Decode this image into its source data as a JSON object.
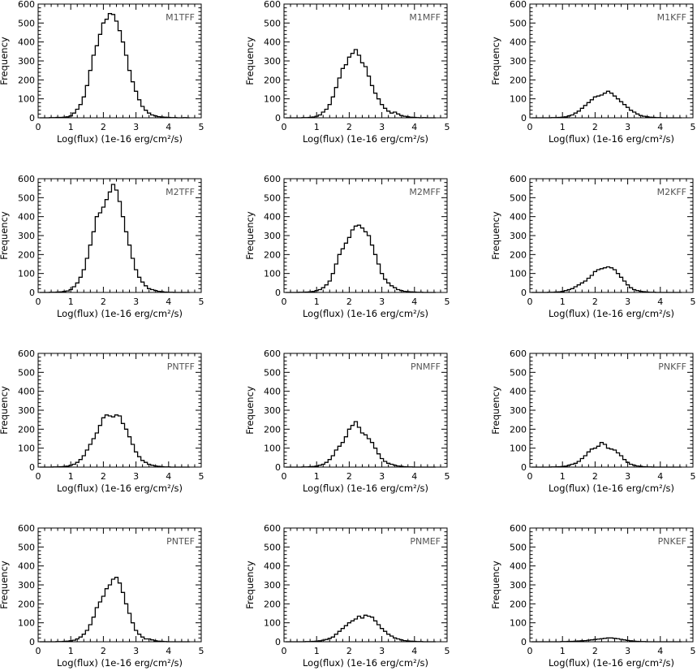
{
  "chart_data": [
    {
      "type": "bar",
      "title": "M1TFF",
      "xlabel": "Log(flux) (1e-16 erg/cm²/s)",
      "ylabel": "Frequency",
      "xlim": [
        0,
        5
      ],
      "ylim": [
        0,
        600
      ],
      "xticks": [
        "0",
        "1",
        "2",
        "3",
        "4",
        "5"
      ],
      "yticks": [
        "0",
        "100",
        "200",
        "300",
        "400",
        "500",
        "600"
      ],
      "x": [
        0.1,
        0.2,
        0.3,
        0.4,
        0.5,
        0.6,
        0.7,
        0.8,
        0.9,
        1.0,
        1.1,
        1.2,
        1.3,
        1.4,
        1.5,
        1.6,
        1.7,
        1.8,
        1.9,
        2.0,
        2.1,
        2.2,
        2.3,
        2.4,
        2.5,
        2.6,
        2.7,
        2.8,
        2.9,
        3.0,
        3.1,
        3.2,
        3.3,
        3.4,
        3.5,
        3.6,
        3.7,
        3.8,
        3.9,
        4.0,
        4.1,
        4.2,
        4.3,
        4.4,
        4.5,
        4.6
      ],
      "values": [
        0,
        0,
        0,
        1,
        1,
        2,
        2,
        3,
        5,
        10,
        25,
        45,
        70,
        110,
        170,
        250,
        330,
        380,
        440,
        500,
        520,
        550,
        545,
        510,
        460,
        400,
        330,
        250,
        190,
        140,
        95,
        60,
        40,
        25,
        15,
        10,
        6,
        4,
        3,
        2,
        1,
        1,
        0,
        0,
        1,
        0
      ]
    },
    {
      "type": "bar",
      "title": "M1MFF",
      "xlabel": "Log(flux) (1e-16 erg/cm²/s)",
      "ylabel": "Frequency",
      "xlim": [
        0,
        5
      ],
      "ylim": [
        0,
        600
      ],
      "xticks": [
        "0",
        "1",
        "2",
        "3",
        "4",
        "5"
      ],
      "yticks": [
        "0",
        "100",
        "200",
        "300",
        "400",
        "500",
        "600"
      ],
      "x": [
        0.1,
        0.2,
        0.3,
        0.4,
        0.5,
        0.6,
        0.7,
        0.8,
        0.9,
        1.0,
        1.1,
        1.2,
        1.3,
        1.4,
        1.5,
        1.6,
        1.7,
        1.8,
        1.9,
        2.0,
        2.1,
        2.2,
        2.3,
        2.4,
        2.5,
        2.6,
        2.7,
        2.8,
        2.9,
        3.0,
        3.1,
        3.2,
        3.3,
        3.4,
        3.5,
        3.6,
        3.7,
        3.8,
        3.9,
        4.0,
        4.1,
        4.2,
        4.3,
        4.4,
        4.5,
        4.6
      ],
      "values": [
        0,
        0,
        0,
        0,
        0,
        1,
        1,
        2,
        4,
        8,
        15,
        30,
        45,
        70,
        110,
        160,
        210,
        260,
        280,
        320,
        340,
        360,
        330,
        290,
        270,
        220,
        170,
        130,
        100,
        70,
        50,
        35,
        25,
        30,
        20,
        12,
        8,
        5,
        3,
        2,
        1,
        0,
        1,
        0,
        0,
        0
      ]
    },
    {
      "type": "bar",
      "title": "M1KFF",
      "xlabel": "Log(flux) (1e-16 erg/cm²/s)",
      "ylabel": "Frequency",
      "xlim": [
        0,
        5
      ],
      "ylim": [
        0,
        600
      ],
      "xticks": [
        "0",
        "1",
        "2",
        "3",
        "4",
        "5"
      ],
      "yticks": [
        "0",
        "100",
        "200",
        "300",
        "400",
        "500",
        "600"
      ],
      "x": [
        0.1,
        0.2,
        0.3,
        0.4,
        0.5,
        0.6,
        0.7,
        0.8,
        0.9,
        1.0,
        1.1,
        1.2,
        1.3,
        1.4,
        1.5,
        1.6,
        1.7,
        1.8,
        1.9,
        2.0,
        2.1,
        2.2,
        2.3,
        2.4,
        2.5,
        2.6,
        2.7,
        2.8,
        2.9,
        3.0,
        3.1,
        3.2,
        3.3,
        3.4,
        3.5,
        3.6,
        3.7,
        3.8,
        3.9,
        4.0,
        4.1,
        4.2,
        4.3,
        4.4,
        4.5,
        4.6
      ],
      "values": [
        0,
        0,
        0,
        0,
        0,
        0,
        1,
        1,
        2,
        3,
        5,
        10,
        15,
        25,
        35,
        50,
        65,
        80,
        95,
        110,
        115,
        120,
        130,
        140,
        130,
        115,
        100,
        85,
        70,
        55,
        40,
        30,
        20,
        12,
        8,
        5,
        3,
        2,
        1,
        1,
        0,
        0,
        0,
        0,
        0,
        0
      ]
    },
    {
      "type": "bar",
      "title": "M2TFF",
      "xlabel": "Log(flux) (1e-16 erg/cm²/s)",
      "ylabel": "Frequency",
      "xlim": [
        0,
        5
      ],
      "ylim": [
        0,
        600
      ],
      "xticks": [
        "0",
        "1",
        "2",
        "3",
        "4",
        "5"
      ],
      "yticks": [
        "0",
        "100",
        "200",
        "300",
        "400",
        "500",
        "600"
      ],
      "x": [
        0.1,
        0.2,
        0.3,
        0.4,
        0.5,
        0.6,
        0.7,
        0.8,
        0.9,
        1.0,
        1.1,
        1.2,
        1.3,
        1.4,
        1.5,
        1.6,
        1.7,
        1.8,
        1.9,
        2.0,
        2.1,
        2.2,
        2.3,
        2.4,
        2.5,
        2.6,
        2.7,
        2.8,
        2.9,
        3.0,
        3.1,
        3.2,
        3.3,
        3.4,
        3.5,
        3.6,
        3.7,
        3.8,
        3.9,
        4.0,
        4.1,
        4.2,
        4.3,
        4.4,
        4.5,
        4.6
      ],
      "values": [
        0,
        0,
        0,
        1,
        1,
        2,
        3,
        5,
        8,
        15,
        30,
        50,
        80,
        120,
        180,
        250,
        320,
        400,
        420,
        450,
        490,
        530,
        570,
        540,
        480,
        400,
        320,
        250,
        180,
        120,
        80,
        55,
        35,
        20,
        15,
        10,
        6,
        4,
        2,
        1,
        1,
        0,
        0,
        0,
        0,
        0
      ]
    },
    {
      "type": "bar",
      "title": "M2MFF",
      "xlabel": "Log(flux) (1e-16 erg/cm²/s)",
      "ylabel": "Frequency",
      "xlim": [
        0,
        5
      ],
      "ylim": [
        0,
        600
      ],
      "xticks": [
        "0",
        "1",
        "2",
        "3",
        "4",
        "5"
      ],
      "yticks": [
        "0",
        "100",
        "200",
        "300",
        "400",
        "500",
        "600"
      ],
      "x": [
        0.1,
        0.2,
        0.3,
        0.4,
        0.5,
        0.6,
        0.7,
        0.8,
        0.9,
        1.0,
        1.1,
        1.2,
        1.3,
        1.4,
        1.5,
        1.6,
        1.7,
        1.8,
        1.9,
        2.0,
        2.1,
        2.2,
        2.3,
        2.4,
        2.5,
        2.6,
        2.7,
        2.8,
        2.9,
        3.0,
        3.1,
        3.2,
        3.3,
        3.4,
        3.5,
        3.6,
        3.7,
        3.8,
        3.9,
        4.0,
        4.1,
        4.2,
        4.3,
        4.4,
        4.5,
        4.6
      ],
      "values": [
        0,
        0,
        0,
        0,
        1,
        1,
        2,
        3,
        5,
        10,
        15,
        25,
        40,
        60,
        100,
        150,
        200,
        230,
        260,
        290,
        330,
        350,
        355,
        340,
        320,
        300,
        250,
        200,
        150,
        100,
        70,
        50,
        35,
        25,
        15,
        10,
        6,
        4,
        3,
        2,
        1,
        1,
        0,
        0,
        0,
        0
      ]
    },
    {
      "type": "bar",
      "title": "M2KFF",
      "xlabel": "Log(flux) (1e-16 erg/cm²/s)",
      "ylabel": "Frequency",
      "xlim": [
        0,
        5
      ],
      "ylim": [
        0,
        600
      ],
      "xticks": [
        "0",
        "1",
        "2",
        "3",
        "4",
        "5"
      ],
      "yticks": [
        "0",
        "100",
        "200",
        "300",
        "400",
        "500",
        "600"
      ],
      "x": [
        0.1,
        0.2,
        0.3,
        0.4,
        0.5,
        0.6,
        0.7,
        0.8,
        0.9,
        1.0,
        1.1,
        1.2,
        1.3,
        1.4,
        1.5,
        1.6,
        1.7,
        1.8,
        1.9,
        2.0,
        2.1,
        2.2,
        2.3,
        2.4,
        2.5,
        2.6,
        2.7,
        2.8,
        2.9,
        3.0,
        3.1,
        3.2,
        3.3,
        3.4,
        3.5,
        3.6,
        3.7,
        3.8,
        3.9,
        4.0,
        4.1,
        4.2,
        4.3,
        4.4,
        4.5,
        4.6
      ],
      "values": [
        0,
        0,
        0,
        0,
        0,
        1,
        1,
        2,
        3,
        5,
        10,
        15,
        20,
        30,
        40,
        50,
        60,
        75,
        90,
        110,
        120,
        125,
        130,
        135,
        130,
        120,
        100,
        80,
        60,
        40,
        25,
        15,
        10,
        6,
        4,
        2,
        1,
        1,
        0,
        0,
        0,
        0,
        0,
        0,
        0,
        0
      ]
    },
    {
      "type": "bar",
      "title": "PNTFF",
      "xlabel": "Log(flux) (1e-16 erg/cm²/s)",
      "ylabel": "Frequency",
      "xlim": [
        0,
        5
      ],
      "ylim": [
        0,
        600
      ],
      "xticks": [
        "0",
        "1",
        "2",
        "3",
        "4",
        "5"
      ],
      "yticks": [
        "0",
        "100",
        "200",
        "300",
        "400",
        "500",
        "600"
      ],
      "x": [
        0.1,
        0.2,
        0.3,
        0.4,
        0.5,
        0.6,
        0.7,
        0.8,
        0.9,
        1.0,
        1.1,
        1.2,
        1.3,
        1.4,
        1.5,
        1.6,
        1.7,
        1.8,
        1.9,
        2.0,
        2.1,
        2.2,
        2.3,
        2.4,
        2.5,
        2.6,
        2.7,
        2.8,
        2.9,
        3.0,
        3.1,
        3.2,
        3.3,
        3.4,
        3.5,
        3.6,
        3.7,
        3.8,
        3.9,
        4.0,
        4.1,
        4.2,
        4.3,
        4.4,
        4.5,
        4.6
      ],
      "values": [
        0,
        0,
        0,
        0,
        1,
        1,
        2,
        3,
        5,
        10,
        15,
        25,
        40,
        60,
        90,
        120,
        150,
        180,
        220,
        260,
        275,
        270,
        265,
        275,
        270,
        230,
        200,
        160,
        120,
        80,
        55,
        35,
        25,
        15,
        10,
        6,
        4,
        2,
        1,
        1,
        0,
        0,
        0,
        0,
        0,
        0
      ]
    },
    {
      "type": "bar",
      "title": "PNMFF",
      "xlabel": "Log(flux) (1e-16 erg/cm²/s)",
      "ylabel": "Frequency",
      "xlim": [
        0,
        5
      ],
      "ylim": [
        0,
        600
      ],
      "xticks": [
        "0",
        "1",
        "2",
        "3",
        "4",
        "5"
      ],
      "yticks": [
        "0",
        "100",
        "200",
        "300",
        "400",
        "500",
        "600"
      ],
      "x": [
        0.1,
        0.2,
        0.3,
        0.4,
        0.5,
        0.6,
        0.7,
        0.8,
        0.9,
        1.0,
        1.1,
        1.2,
        1.3,
        1.4,
        1.5,
        1.6,
        1.7,
        1.8,
        1.9,
        2.0,
        2.1,
        2.2,
        2.3,
        2.4,
        2.5,
        2.6,
        2.7,
        2.8,
        2.9,
        3.0,
        3.1,
        3.2,
        3.3,
        3.4,
        3.5,
        3.6,
        3.7,
        3.8,
        3.9,
        4.0,
        4.1,
        4.2,
        4.3,
        4.4,
        4.5,
        4.6
      ],
      "values": [
        0,
        0,
        0,
        0,
        0,
        1,
        1,
        2,
        3,
        5,
        10,
        15,
        25,
        40,
        60,
        90,
        110,
        130,
        160,
        200,
        220,
        240,
        210,
        180,
        170,
        150,
        130,
        100,
        70,
        45,
        30,
        20,
        15,
        10,
        6,
        4,
        2,
        1,
        1,
        0,
        0,
        0,
        0,
        0,
        0,
        0
      ]
    },
    {
      "type": "bar",
      "title": "PNKFF",
      "xlabel": "Log(flux) (1e-16 erg/cm²/s)",
      "ylabel": "Frequency",
      "xlim": [
        0,
        5
      ],
      "ylim": [
        0,
        600
      ],
      "xticks": [
        "0",
        "1",
        "2",
        "3",
        "4",
        "5"
      ],
      "yticks": [
        "0",
        "100",
        "200",
        "300",
        "400",
        "500",
        "600"
      ],
      "x": [
        0.1,
        0.2,
        0.3,
        0.4,
        0.5,
        0.6,
        0.7,
        0.8,
        0.9,
        1.0,
        1.1,
        1.2,
        1.3,
        1.4,
        1.5,
        1.6,
        1.7,
        1.8,
        1.9,
        2.0,
        2.1,
        2.2,
        2.3,
        2.4,
        2.5,
        2.6,
        2.7,
        2.8,
        2.9,
        3.0,
        3.1,
        3.2,
        3.3,
        3.4,
        3.5,
        3.6,
        3.7,
        3.8,
        3.9,
        4.0,
        4.1,
        4.2,
        4.3,
        4.4,
        4.5,
        4.6
      ],
      "values": [
        0,
        0,
        0,
        0,
        0,
        0,
        1,
        1,
        2,
        3,
        5,
        10,
        15,
        20,
        30,
        45,
        60,
        80,
        95,
        100,
        110,
        130,
        120,
        100,
        95,
        90,
        75,
        60,
        40,
        25,
        15,
        10,
        6,
        4,
        2,
        1,
        1,
        0,
        0,
        0,
        0,
        0,
        0,
        0,
        0,
        0
      ]
    },
    {
      "type": "bar",
      "title": "PNTEF",
      "xlabel": "Log(flux) (1e-16 erg/cm²/s)",
      "ylabel": "Frequency",
      "xlim": [
        0,
        5
      ],
      "ylim": [
        0,
        600
      ],
      "xticks": [
        "0",
        "1",
        "2",
        "3",
        "4",
        "5"
      ],
      "yticks": [
        "0",
        "100",
        "200",
        "300",
        "400",
        "500",
        "600"
      ],
      "x": [
        0.1,
        0.2,
        0.3,
        0.4,
        0.5,
        0.6,
        0.7,
        0.8,
        0.9,
        1.0,
        1.1,
        1.2,
        1.3,
        1.4,
        1.5,
        1.6,
        1.7,
        1.8,
        1.9,
        2.0,
        2.1,
        2.2,
        2.3,
        2.4,
        2.5,
        2.6,
        2.7,
        2.8,
        2.9,
        3.0,
        3.1,
        3.2,
        3.3,
        3.4,
        3.5,
        3.6,
        3.7,
        3.8,
        3.9,
        4.0,
        4.1,
        4.2,
        4.3,
        4.4,
        4.5,
        4.6
      ],
      "values": [
        0,
        0,
        0,
        0,
        0,
        1,
        1,
        2,
        3,
        5,
        8,
        15,
        25,
        40,
        60,
        90,
        130,
        180,
        210,
        240,
        280,
        300,
        330,
        340,
        310,
        260,
        200,
        150,
        100,
        60,
        40,
        25,
        15,
        15,
        10,
        5,
        3,
        2,
        1,
        0,
        0,
        0,
        0,
        0,
        0,
        0
      ]
    },
    {
      "type": "bar",
      "title": "PNMEF",
      "xlabel": "Log(flux) (1e-16 erg/cm²/s)",
      "ylabel": "Frequency",
      "xlim": [
        0,
        5
      ],
      "ylim": [
        0,
        600
      ],
      "xticks": [
        "0",
        "1",
        "2",
        "3",
        "4",
        "5"
      ],
      "yticks": [
        "0",
        "100",
        "200",
        "300",
        "400",
        "500",
        "600"
      ],
      "x": [
        0.1,
        0.2,
        0.3,
        0.4,
        0.5,
        0.6,
        0.7,
        0.8,
        0.9,
        1.0,
        1.1,
        1.2,
        1.3,
        1.4,
        1.5,
        1.6,
        1.7,
        1.8,
        1.9,
        2.0,
        2.1,
        2.2,
        2.3,
        2.4,
        2.5,
        2.6,
        2.7,
        2.8,
        2.9,
        3.0,
        3.1,
        3.2,
        3.3,
        3.4,
        3.5,
        3.6,
        3.7,
        3.8,
        3.9,
        4.0,
        4.1,
        4.2,
        4.3,
        4.4,
        4.5,
        4.6
      ],
      "values": [
        0,
        0,
        0,
        0,
        0,
        0,
        1,
        1,
        2,
        3,
        5,
        8,
        12,
        18,
        25,
        40,
        55,
        70,
        85,
        100,
        110,
        120,
        135,
        125,
        140,
        135,
        130,
        110,
        90,
        70,
        55,
        40,
        30,
        20,
        15,
        10,
        6,
        4,
        3,
        2,
        1,
        1,
        0,
        0,
        0,
        0
      ]
    },
    {
      "type": "bar",
      "title": "PNKEF",
      "xlabel": "Log(flux) (1e-16 erg/cm²/s)",
      "ylabel": "Frequency",
      "xlim": [
        0,
        5
      ],
      "ylim": [
        0,
        600
      ],
      "xticks": [
        "0",
        "1",
        "2",
        "3",
        "4",
        "5"
      ],
      "yticks": [
        "0",
        "100",
        "200",
        "300",
        "400",
        "500",
        "600"
      ],
      "x": [
        0.1,
        0.2,
        0.3,
        0.4,
        0.5,
        0.6,
        0.7,
        0.8,
        0.9,
        1.0,
        1.1,
        1.2,
        1.3,
        1.4,
        1.5,
        1.6,
        1.7,
        1.8,
        1.9,
        2.0,
        2.1,
        2.2,
        2.3,
        2.4,
        2.5,
        2.6,
        2.7,
        2.8,
        2.9,
        3.0,
        3.1,
        3.2,
        3.3,
        3.4,
        3.5,
        3.6,
        3.7,
        3.8,
        3.9,
        4.0,
        4.1,
        4.2,
        4.3,
        4.4,
        4.5,
        4.6
      ],
      "values": [
        0,
        0,
        0,
        0,
        0,
        0,
        0,
        0,
        0,
        1,
        1,
        2,
        2,
        3,
        4,
        5,
        6,
        8,
        10,
        12,
        14,
        16,
        18,
        20,
        20,
        18,
        16,
        13,
        10,
        7,
        5,
        3,
        2,
        1,
        1,
        0,
        0,
        0,
        0,
        0,
        0,
        0,
        0,
        0,
        0,
        0
      ]
    }
  ]
}
